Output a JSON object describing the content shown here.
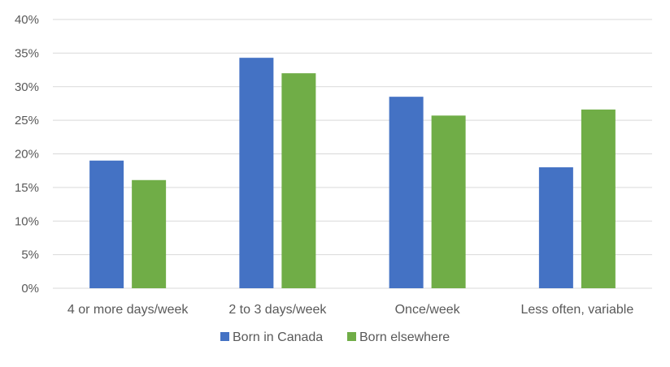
{
  "chart_data": {
    "type": "bar",
    "categories": [
      "4 or more days/week",
      "2 to 3 days/week",
      "Once/week",
      "Less often, variable"
    ],
    "series": [
      {
        "name": "Born in Canada",
        "values": [
          19.0,
          34.3,
          28.5,
          18.0
        ],
        "color": "#4472C4"
      },
      {
        "name": "Born elsewhere",
        "values": [
          16.1,
          32.0,
          25.7,
          26.6
        ],
        "color": "#70AD47"
      }
    ],
    "ylim": [
      0,
      40
    ],
    "yticks": [
      "0%",
      "5%",
      "10%",
      "15%",
      "20%",
      "25%",
      "30%",
      "35%",
      "40%"
    ],
    "ytick_values": [
      0,
      5,
      10,
      15,
      20,
      25,
      30,
      35,
      40
    ],
    "grid": true,
    "legend_position": "bottom",
    "gridline_color": "#D9D9D9"
  }
}
